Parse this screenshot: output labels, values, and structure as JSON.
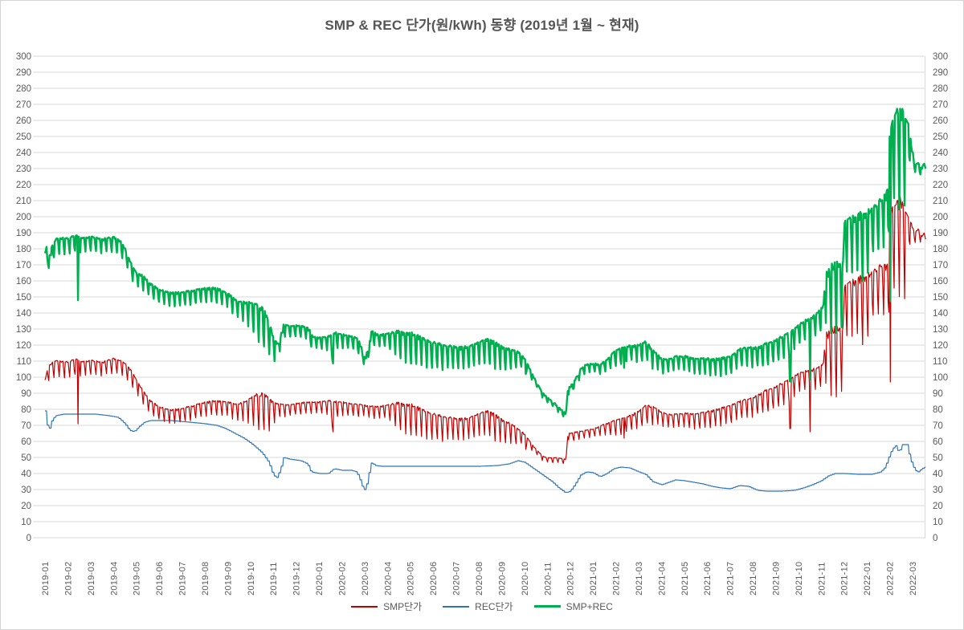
{
  "title": "SMP & REC 단가(원/kWh) 동향 (2019년 1월 ~ 현재)",
  "chart_data": {
    "type": "line",
    "title": "SMP & REC 단가(원/kWh) 동향 (2019년 1월 ~ 현재)",
    "grid": true,
    "grid_color": "#d9d9d9",
    "axis_label_color": "#595959",
    "title_color": "#555555",
    "y_axis": {
      "min": 0,
      "max": 300,
      "step": 10,
      "sides": [
        "left",
        "right"
      ],
      "tick_labels": [
        "0",
        "10",
        "20",
        "30",
        "40",
        "50",
        "60",
        "70",
        "80",
        "90",
        "100",
        "110",
        "120",
        "130",
        "140",
        "150",
        "160",
        "170",
        "180",
        "190",
        "200",
        "210",
        "220",
        "230",
        "240",
        "250",
        "260",
        "270",
        "280",
        "290",
        "300"
      ]
    },
    "x_axis": {
      "unit": "month",
      "rotated_labels": true,
      "tick_labels": [
        "2019-01",
        "2019-02",
        "2019-03",
        "2019-04",
        "2019-05",
        "2019-06",
        "2019-07",
        "2019-08",
        "2019-09",
        "2019-10",
        "2019-11",
        "2019-12",
        "2020-01",
        "2020-02",
        "2020-03",
        "2020-04",
        "2020-05",
        "2020-06",
        "2020-07",
        "2020-08",
        "2020-09",
        "2020-10",
        "2020-11",
        "2020-12",
        "2021-01",
        "2021-02",
        "2021-03",
        "2021-04",
        "2021-05",
        "2021-06",
        "2021-07",
        "2021-08",
        "2021-09",
        "2021-10",
        "2021-11",
        "2021-12",
        "2022-01",
        "2022-02",
        "2022-03"
      ],
      "series_end_offset_days": 1174
    },
    "legend": {
      "position": "bottom",
      "entries": [
        {
          "label": "SMP단가",
          "color": "#c00000",
          "thick": false
        },
        {
          "label": "REC단가",
          "color": "#2e75b6",
          "thick": false
        },
        {
          "label": "SMP+REC",
          "color": "#00b050",
          "thick": true
        }
      ]
    },
    "series": [
      {
        "name": "SMP단가",
        "color": "#c00000",
        "stroke_width": 1.2,
        "kind": "daily_with_weekly_dips",
        "baseline_anchors_month_value": [
          [
            0,
            99
          ],
          [
            0.15,
            108
          ],
          [
            0.5,
            111
          ],
          [
            1,
            110
          ],
          [
            1.4,
            112
          ],
          [
            1.6,
            110
          ],
          [
            2,
            111
          ],
          [
            2.5,
            110
          ],
          [
            3,
            112
          ],
          [
            3.3,
            111
          ],
          [
            3.6,
            108
          ],
          [
            3.8,
            104
          ],
          [
            4,
            99
          ],
          [
            4.3,
            92
          ],
          [
            4.6,
            86
          ],
          [
            5,
            82
          ],
          [
            5.5,
            80
          ],
          [
            6,
            81
          ],
          [
            6.5,
            83
          ],
          [
            7,
            85
          ],
          [
            7.5,
            86
          ],
          [
            8,
            85
          ],
          [
            8.5,
            84
          ],
          [
            8.8,
            86
          ],
          [
            9.2,
            90
          ],
          [
            9.5,
            91
          ],
          [
            9.8,
            88
          ],
          [
            10.2,
            84
          ],
          [
            10.6,
            83
          ],
          [
            11,
            84
          ],
          [
            11.5,
            85
          ],
          [
            12,
            85
          ],
          [
            12.5,
            86
          ],
          [
            13,
            85
          ],
          [
            13.5,
            84
          ],
          [
            14,
            83
          ],
          [
            14.5,
            82
          ],
          [
            15,
            83
          ],
          [
            15.5,
            85
          ],
          [
            16,
            84
          ],
          [
            16.5,
            81
          ],
          [
            17,
            78
          ],
          [
            17.5,
            76
          ],
          [
            18,
            75
          ],
          [
            18.5,
            75
          ],
          [
            19,
            78
          ],
          [
            19.3,
            80
          ],
          [
            19.7,
            78
          ],
          [
            20,
            75
          ],
          [
            20.5,
            71
          ],
          [
            21,
            65
          ],
          [
            21.4,
            57
          ],
          [
            21.8,
            51
          ],
          [
            22,
            50
          ],
          [
            22.4,
            50
          ],
          [
            22.82,
            49
          ],
          [
            22.9,
            65
          ],
          [
            23.2,
            66
          ],
          [
            23.6,
            67
          ],
          [
            24,
            68
          ],
          [
            24.5,
            71
          ],
          [
            25,
            74
          ],
          [
            25.5,
            76
          ],
          [
            26,
            79
          ],
          [
            26.3,
            83
          ],
          [
            26.7,
            82
          ],
          [
            27,
            79
          ],
          [
            27.4,
            77
          ],
          [
            28,
            78
          ],
          [
            28.5,
            78
          ],
          [
            29,
            79
          ],
          [
            29.5,
            81
          ],
          [
            30,
            83
          ],
          [
            30.5,
            86
          ],
          [
            31,
            88
          ],
          [
            31.5,
            92
          ],
          [
            32,
            95
          ],
          [
            32.5,
            99
          ],
          [
            33,
            103
          ],
          [
            33.4,
            105
          ],
          [
            33.8,
            106
          ],
          [
            34.1,
            110
          ],
          [
            34.17,
            129
          ],
          [
            34.5,
            133
          ],
          [
            34.95,
            131
          ],
          [
            35.02,
            158
          ],
          [
            35.4,
            162
          ],
          [
            35.8,
            165
          ],
          [
            36.1,
            166
          ],
          [
            36.5,
            170
          ],
          [
            36.93,
            173
          ],
          [
            37.0,
            205
          ],
          [
            37.3,
            214
          ],
          [
            37.55,
            213
          ],
          [
            37.75,
            203
          ],
          [
            37.95,
            196
          ],
          [
            38.1,
            190
          ],
          [
            38.25,
            193
          ],
          [
            38.4,
            188
          ],
          [
            38.55,
            191
          ]
        ],
        "weekly_dip_amp_anchors": [
          [
            0,
            10
          ],
          [
            1,
            10
          ],
          [
            2,
            9
          ],
          [
            3,
            9
          ],
          [
            4,
            9
          ],
          [
            5,
            8
          ],
          [
            6,
            9
          ],
          [
            7,
            9
          ],
          [
            8,
            9
          ],
          [
            8.8,
            13
          ],
          [
            9.5,
            24
          ],
          [
            9.9,
            20
          ],
          [
            10.2,
            8
          ],
          [
            11,
            7
          ],
          [
            12,
            7
          ],
          [
            12.4,
            9
          ],
          [
            12.6,
            16
          ],
          [
            12.8,
            9
          ],
          [
            13.5,
            8
          ],
          [
            14,
            7
          ],
          [
            15,
            8
          ],
          [
            15.5,
            17
          ],
          [
            16,
            19
          ],
          [
            17,
            17
          ],
          [
            18,
            13
          ],
          [
            19,
            14
          ],
          [
            19.8,
            17
          ],
          [
            20.5,
            12
          ],
          [
            21,
            6
          ],
          [
            21.5,
            3
          ],
          [
            22.5,
            3
          ],
          [
            22.85,
            3
          ],
          [
            23,
            5
          ],
          [
            23.5,
            5
          ],
          [
            24,
            5
          ],
          [
            24.6,
            7
          ],
          [
            25.2,
            11
          ],
          [
            25.6,
            9
          ],
          [
            26,
            11
          ],
          [
            26.5,
            12
          ],
          [
            27,
            9
          ],
          [
            27.5,
            8
          ],
          [
            28,
            9
          ],
          [
            28.5,
            10
          ],
          [
            29,
            10
          ],
          [
            29.5,
            11
          ],
          [
            30,
            11
          ],
          [
            30.5,
            11
          ],
          [
            31,
            12
          ],
          [
            31.5,
            13
          ],
          [
            32,
            14
          ],
          [
            32.5,
            15
          ],
          [
            33,
            12
          ],
          [
            33.5,
            12
          ],
          [
            34,
            14
          ],
          [
            34.3,
            42
          ],
          [
            34.7,
            45
          ],
          [
            35.1,
            33
          ],
          [
            35.5,
            35
          ],
          [
            35.9,
            45
          ],
          [
            36.3,
            28
          ],
          [
            36.7,
            30
          ],
          [
            37.1,
            55
          ],
          [
            37.4,
            60
          ],
          [
            37.7,
            55
          ],
          [
            37.9,
            12
          ],
          [
            38.1,
            6
          ],
          [
            38.55,
            5
          ]
        ],
        "special_low_points_month_value": [
          [
            1.45,
            71
          ],
          [
            12.62,
            66
          ],
          [
            21.05,
            55
          ],
          [
            25.37,
            62
          ],
          [
            32.64,
            68
          ],
          [
            33.52,
            66
          ],
          [
            37.02,
            97
          ]
        ]
      },
      {
        "name": "REC단가",
        "color": "#2e75b6",
        "stroke_width": 1.2,
        "kind": "stepped",
        "anchors_month_value": [
          [
            0,
            79
          ],
          [
            0.08,
            71
          ],
          [
            0.17,
            67
          ],
          [
            0.3,
            73
          ],
          [
            0.45,
            76
          ],
          [
            0.8,
            77
          ],
          [
            1.5,
            77
          ],
          [
            2.2,
            77
          ],
          [
            2.8,
            76
          ],
          [
            3.2,
            75
          ],
          [
            3.5,
            71
          ],
          [
            3.7,
            67
          ],
          [
            3.9,
            66
          ],
          [
            4.1,
            69
          ],
          [
            4.35,
            72
          ],
          [
            4.6,
            73
          ],
          [
            5.5,
            73
          ],
          [
            6.3,
            72
          ],
          [
            7,
            71
          ],
          [
            7.5,
            70
          ],
          [
            7.9,
            68
          ],
          [
            8.3,
            65
          ],
          [
            8.7,
            62
          ],
          [
            9.1,
            58
          ],
          [
            9.5,
            53
          ],
          [
            9.8,
            47
          ],
          [
            10,
            39
          ],
          [
            10.15,
            37.5
          ],
          [
            10.3,
            42
          ],
          [
            10.45,
            50
          ],
          [
            10.7,
            49
          ],
          [
            11.2,
            48
          ],
          [
            11.5,
            46
          ],
          [
            11.65,
            41
          ],
          [
            12,
            40
          ],
          [
            12.4,
            40
          ],
          [
            12.65,
            43
          ],
          [
            13,
            42
          ],
          [
            13.4,
            42
          ],
          [
            13.65,
            41
          ],
          [
            13.8,
            36
          ],
          [
            13.95,
            30
          ],
          [
            14.05,
            30
          ],
          [
            14.15,
            38
          ],
          [
            14.3,
            47
          ],
          [
            14.45,
            45
          ],
          [
            14.7,
            44.5
          ],
          [
            16,
            44.5
          ],
          [
            17,
            44.5
          ],
          [
            18,
            44.5
          ],
          [
            19,
            44.5
          ],
          [
            19.8,
            45
          ],
          [
            20.3,
            46
          ],
          [
            20.7,
            48
          ],
          [
            21,
            47
          ],
          [
            21.3,
            44
          ],
          [
            21.6,
            41
          ],
          [
            21.9,
            38
          ],
          [
            22.2,
            35
          ],
          [
            22.5,
            31
          ],
          [
            22.8,
            28
          ],
          [
            23,
            29
          ],
          [
            23.2,
            33
          ],
          [
            23.45,
            39
          ],
          [
            23.7,
            41
          ],
          [
            24,
            40.5
          ],
          [
            24.3,
            38
          ],
          [
            24.6,
            40
          ],
          [
            24.9,
            43
          ],
          [
            25.2,
            44
          ],
          [
            25.6,
            43.5
          ],
          [
            26,
            41
          ],
          [
            26.3,
            39.5
          ],
          [
            26.6,
            35
          ],
          [
            27,
            33
          ],
          [
            27.3,
            34.5
          ],
          [
            27.6,
            36
          ],
          [
            28,
            35.5
          ],
          [
            28.4,
            34.5
          ],
          [
            28.8,
            33.5
          ],
          [
            29.2,
            32
          ],
          [
            29.6,
            31
          ],
          [
            30,
            30.5
          ],
          [
            30.4,
            32.5
          ],
          [
            30.8,
            32
          ],
          [
            31.2,
            29.5
          ],
          [
            31.6,
            29
          ],
          [
            32.2,
            29
          ],
          [
            32.8,
            29.5
          ],
          [
            33.2,
            31
          ],
          [
            33.6,
            33
          ],
          [
            34,
            35.5
          ],
          [
            34.3,
            38.5
          ],
          [
            34.6,
            40
          ],
          [
            35,
            40
          ],
          [
            35.6,
            39.5
          ],
          [
            36.2,
            39.5
          ],
          [
            36.6,
            41
          ],
          [
            36.8,
            44
          ],
          [
            36.95,
            50
          ],
          [
            37.1,
            55
          ],
          [
            37.25,
            57.5
          ],
          [
            37.4,
            53
          ],
          [
            37.55,
            58
          ],
          [
            37.75,
            58
          ],
          [
            37.85,
            52
          ],
          [
            37.95,
            47
          ],
          [
            38.1,
            42
          ],
          [
            38.25,
            41
          ],
          [
            38.4,
            43
          ],
          [
            38.55,
            44
          ]
        ]
      },
      {
        "name": "SMP+REC",
        "color": "#00b050",
        "stroke_width": 2.4,
        "kind": "sum",
        "derived": "SMP단가 + REC단가"
      }
    ]
  }
}
